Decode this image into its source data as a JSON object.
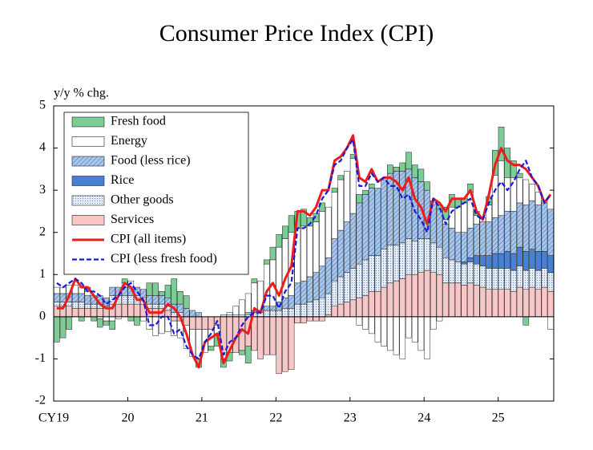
{
  "chart_data": {
    "type": "bar",
    "stacked": true,
    "title": "Consumer Price Index (CPI)",
    "y_label": "y/y % chg.",
    "categories": [
      "CY19",
      null,
      null,
      null,
      null,
      null,
      null,
      null,
      null,
      null,
      null,
      null,
      "20",
      null,
      null,
      null,
      null,
      null,
      null,
      null,
      null,
      null,
      null,
      null,
      "21",
      null,
      null,
      null,
      null,
      null,
      null,
      null,
      null,
      null,
      null,
      null,
      "22",
      null,
      null,
      null,
      null,
      null,
      null,
      null,
      null,
      null,
      null,
      null,
      "23",
      null,
      null,
      null,
      null,
      null,
      null,
      null,
      null,
      null,
      null,
      null,
      "24",
      null,
      null,
      null,
      null,
      null,
      null,
      null,
      null,
      null,
      null,
      null,
      "25",
      null,
      null,
      null,
      null,
      null,
      null,
      null,
      null
    ],
    "ylim": [
      -2,
      5
    ],
    "yticks": [
      -2,
      -1,
      0,
      1,
      2,
      3,
      4,
      5
    ],
    "legend": "upper-left",
    "series": [
      {
        "name": "Fresh food",
        "type": "bar",
        "color": "#7ccc95",
        "pattern": "solid",
        "values": [
          -0.6,
          -0.5,
          -0.3,
          0,
          -0.1,
          0.1,
          -0.1,
          -0.2,
          -0.1,
          -0.2,
          0,
          0.1,
          -0.1,
          -0.2,
          0,
          0.3,
          0.3,
          0.1,
          0.3,
          0.6,
          0.3,
          0.3,
          0,
          -0.2,
          0,
          -0.1,
          -0.3,
          -0.2,
          -0.2,
          0,
          -0.1,
          -0.4,
          0.1,
          0,
          0.1,
          0.3,
          0.3,
          0.3,
          0.4,
          0.4,
          0.4,
          0.2,
          0.2,
          0.2,
          0,
          0.1,
          0.1,
          0,
          0.1,
          0.2,
          0.1,
          0.1,
          0,
          0,
          0.2,
          0.1,
          0.2,
          0.4,
          0.3,
          0.3,
          0.2,
          0,
          0.1,
          0.3,
          0.3,
          0.2,
          0.1,
          0.2,
          0.1,
          0,
          0.2,
          0.6,
          0.8,
          0.7,
          0.4,
          0.1,
          -0.2,
          0,
          0,
          0,
          0
        ]
      },
      {
        "name": "Energy",
        "type": "bar",
        "color": "#ffffff",
        "pattern": "solid",
        "values": [
          0.15,
          0.15,
          0.2,
          0.2,
          0.15,
          0.1,
          0,
          -0.05,
          -0.1,
          -0.1,
          -0.05,
          0.1,
          0.15,
          0,
          -0.1,
          -0.3,
          -0.45,
          -0.4,
          -0.35,
          -0.35,
          -0.4,
          -0.55,
          -0.65,
          -0.7,
          -0.55,
          -0.4,
          -0.2,
          -0.1,
          0.05,
          0.2,
          0.35,
          0.45,
          0.65,
          0.7,
          1,
          1.1,
          1.3,
          1.4,
          1.5,
          1.3,
          1.3,
          1.2,
          1.2,
          1.3,
          1.2,
          1.1,
          1.2,
          1.2,
          1.3,
          -0.2,
          -0.3,
          -0.4,
          -0.6,
          -0.7,
          -0.8,
          -0.9,
          -1,
          -0.5,
          -0.6,
          -0.8,
          -1,
          -0.3,
          -0.1,
          0.1,
          0.5,
          0.6,
          0.7,
          0.85,
          0.2,
          0.1,
          0.4,
          1,
          1.3,
          0.8,
          0.8,
          0.6,
          0.6,
          0.4,
          0.3,
          0.05,
          -0.3
        ]
      },
      {
        "name": "Food (less rice)",
        "type": "bar",
        "color": "#a9c6ea",
        "pattern": "hatch",
        "values": [
          0.2,
          0.2,
          0.2,
          0.2,
          0.2,
          0.2,
          0.2,
          0.2,
          0.2,
          0.2,
          0.2,
          0.2,
          0.2,
          0.2,
          0.2,
          0.2,
          0.2,
          0.2,
          0.2,
          0.2,
          0.2,
          0.2,
          0.15,
          0.1,
          0,
          0,
          0,
          0,
          0,
          0,
          0,
          0.05,
          0.05,
          0.05,
          0.1,
          0.1,
          0.2,
          0.25,
          0.3,
          0.5,
          0.55,
          0.6,
          0.65,
          0.75,
          0.85,
          1,
          1.1,
          1.2,
          1.3,
          1.45,
          1.55,
          1.6,
          1.6,
          1.65,
          1.7,
          1.75,
          1.7,
          1.65,
          1.5,
          1.35,
          1.15,
          1,
          0.9,
          0.8,
          0.75,
          0.7,
          0.7,
          0.7,
          0.75,
          0.8,
          0.8,
          0.85,
          0.9,
          0.95,
          1,
          1.05,
          1.1,
          1.15,
          1.1,
          1.15,
          1.1
        ]
      },
      {
        "name": "Rice",
        "type": "bar",
        "color": "#4a80d4",
        "pattern": "solid",
        "values": [
          0,
          0,
          0,
          0,
          0,
          0,
          0,
          0,
          0,
          0,
          0,
          0,
          0,
          0,
          0,
          0,
          0,
          0,
          0,
          0,
          0,
          0,
          0,
          0,
          0,
          0,
          0,
          0,
          0,
          0,
          0,
          0,
          0,
          0,
          0,
          0,
          0,
          0,
          0,
          0,
          0,
          0,
          0,
          0,
          0,
          0,
          0,
          0,
          0,
          0,
          0,
          0,
          0,
          0,
          0,
          0,
          0,
          0,
          0,
          0,
          0,
          0,
          0,
          0,
          0,
          0,
          0.05,
          0.1,
          0.2,
          0.25,
          0.3,
          0.35,
          0.35,
          0.4,
          0.4,
          0.45,
          0.45,
          0.45,
          0.45,
          0.4,
          0.4
        ]
      },
      {
        "name": "Other goods",
        "type": "bar",
        "color": "#e4eefa",
        "pattern": "dots",
        "values": [
          0.1,
          0.1,
          0.1,
          0.15,
          0.15,
          0.1,
          0.1,
          0.1,
          0.05,
          0.2,
          0.2,
          0.2,
          0.2,
          0.2,
          0.15,
          0.1,
          0.1,
          0.1,
          0.1,
          0.1,
          0.1,
          0,
          0,
          0,
          0,
          0,
          0,
          0.05,
          0.05,
          0.05,
          0.05,
          0.05,
          0.1,
          0.1,
          0.15,
          0.15,
          0.15,
          0.2,
          0.2,
          0.3,
          0.3,
          0.35,
          0.4,
          0.45,
          0.5,
          0.6,
          0.65,
          0.7,
          0.75,
          0.8,
          0.85,
          0.85,
          0.85,
          0.9,
          0.9,
          0.85,
          0.85,
          0.85,
          0.8,
          0.8,
          0.75,
          0.7,
          0.65,
          0.6,
          0.55,
          0.5,
          0.5,
          0.5,
          0.5,
          0.5,
          0.5,
          0.5,
          0.5,
          0.5,
          0.5,
          0.5,
          0.45,
          0.45,
          0.45,
          0.45,
          0.45
        ]
      },
      {
        "name": "Services",
        "type": "bar",
        "color": "#f7c6c6",
        "pattern": "solid",
        "values": [
          0.25,
          0.25,
          0.25,
          0.2,
          0.2,
          0.2,
          0.2,
          0.2,
          0.2,
          0.3,
          0.3,
          0.3,
          0.3,
          0.3,
          0.3,
          0.2,
          0.2,
          0.2,
          0.15,
          -0.1,
          -0.1,
          -0.2,
          -0.3,
          -0.3,
          -0.3,
          -0.3,
          -0.2,
          -0.9,
          -0.85,
          -0.85,
          -0.8,
          -0.7,
          -0.8,
          -1,
          -0.9,
          -0.9,
          -1.35,
          -1.3,
          -1.25,
          -0.15,
          -0.15,
          -0.1,
          -0.1,
          -0.1,
          0.05,
          0.25,
          0.3,
          0.35,
          0.4,
          0.45,
          0.5,
          0.6,
          0.6,
          0.7,
          0.8,
          0.85,
          0.9,
          1,
          1,
          1.05,
          1.1,
          1.05,
          1,
          0.8,
          0.8,
          0.8,
          0.75,
          0.8,
          0.75,
          0.7,
          0.65,
          0.65,
          0.65,
          0.65,
          0.6,
          0.7,
          0.65,
          0.7,
          0.65,
          0.7,
          0.6
        ]
      },
      {
        "name": "CPI (all items)",
        "type": "line",
        "color": "#ee1c1c",
        "dash": false,
        "values": [
          0.2,
          0.2,
          0.5,
          0.9,
          0.7,
          0.7,
          0.5,
          0.3,
          0.2,
          0.2,
          0.5,
          0.8,
          0.7,
          0.4,
          0.4,
          0.1,
          0.1,
          0.1,
          0.3,
          0.2,
          0,
          -0.4,
          -0.9,
          -1.2,
          -0.6,
          -0.5,
          -0.4,
          -1.1,
          -0.8,
          -0.5,
          -0.3,
          -0.4,
          0.2,
          0.1,
          0.6,
          0.8,
          0.5,
          0.9,
          1.2,
          2.5,
          2.5,
          2.4,
          2.6,
          3,
          3,
          3.7,
          3.8,
          4,
          4.3,
          3.3,
          3.2,
          3.5,
          3.2,
          3.3,
          3.3,
          3.2,
          3,
          3.3,
          2.8,
          2.6,
          2.2,
          2.8,
          2.7,
          2.5,
          2.8,
          2.8,
          2.8,
          3,
          2.5,
          2.3,
          2.9,
          3.6,
          4,
          3.7,
          3.6,
          3.6,
          3.5,
          3.3,
          3.1,
          2.7,
          2.9
        ]
      },
      {
        "name": "CPI (less fresh food)",
        "type": "line",
        "color": "#1a1adc",
        "dash": true,
        "values": [
          0.8,
          0.7,
          0.8,
          0.9,
          0.8,
          0.6,
          0.6,
          0.5,
          0.3,
          0.4,
          0.5,
          0.7,
          0.8,
          0.6,
          0.4,
          -0.2,
          -0.2,
          0,
          0,
          -0.4,
          -0.3,
          -0.7,
          -0.9,
          -1,
          -0.6,
          -0.4,
          -0.1,
          -0.9,
          -0.6,
          -0.5,
          -0.2,
          0,
          0.1,
          0.1,
          0.5,
          0.5,
          0.2,
          0.6,
          0.8,
          2.1,
          2.1,
          2.2,
          2.4,
          2.8,
          3,
          3.6,
          3.7,
          4,
          4.2,
          3.1,
          3.1,
          3.4,
          3.2,
          3.3,
          3.1,
          3.1,
          2.8,
          2.9,
          2.5,
          2.3,
          2,
          2.8,
          2.6,
          2.2,
          2.5,
          2.6,
          2.7,
          2.8,
          2.4,
          2.3,
          2.7,
          3,
          3.2,
          3,
          3.2,
          3.5,
          3.7,
          3.3,
          3.1,
          2.7,
          2.9
        ]
      }
    ]
  }
}
